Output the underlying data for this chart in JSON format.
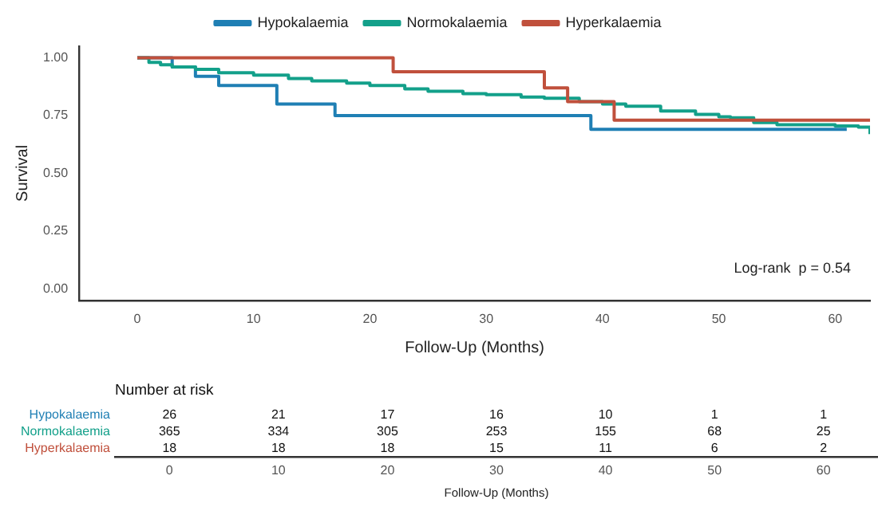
{
  "chart_data": [
    {
      "type": "step",
      "xlabel": "Follow-Up (Months)",
      "ylabel": "Survival",
      "legend": "top",
      "xlim": [
        -5,
        63
      ],
      "xticks": [
        0,
        10,
        20,
        30,
        40,
        50,
        60
      ],
      "ylim": [
        -0.05,
        1.05
      ],
      "yticks": [
        {
          "value": 0,
          "label": "0.00"
        },
        {
          "value": 0.25,
          "label": "0.25"
        },
        {
          "value": 0.5,
          "label": "0.50"
        },
        {
          "value": 0.75,
          "label": "0.75"
        },
        {
          "value": 1,
          "label": "1.00"
        }
      ],
      "annotations": [
        "Log-rank  p = 0.54"
      ],
      "series": [
        {
          "name": "Hypokalaemia",
          "color": "#1f7fb4",
          "x": [
            0,
            3,
            5,
            7,
            12,
            17,
            39,
            61
          ],
          "values": [
            1,
            0.96,
            0.92,
            0.88,
            0.8,
            0.75,
            0.69,
            0.69
          ]
        },
        {
          "name": "Normokalaemia",
          "color": "#13a08a",
          "x": [
            0,
            1,
            2,
            3,
            5,
            7,
            10,
            13,
            15,
            18,
            20,
            23,
            25,
            28,
            30,
            33,
            35,
            38,
            40,
            42,
            45,
            48,
            50,
            51,
            53,
            55,
            60,
            62,
            63
          ],
          "values": [
            1,
            0.98,
            0.97,
            0.96,
            0.95,
            0.935,
            0.925,
            0.91,
            0.9,
            0.89,
            0.88,
            0.865,
            0.855,
            0.845,
            0.84,
            0.83,
            0.825,
            0.81,
            0.8,
            0.79,
            0.77,
            0.755,
            0.745,
            0.74,
            0.72,
            0.71,
            0.705,
            0.7,
            0.67
          ]
        },
        {
          "name": "Hyperkalaemia",
          "color": "#c0503c",
          "x": [
            0,
            22,
            35,
            37,
            41,
            63
          ],
          "values": [
            1,
            0.94,
            0.87,
            0.81,
            0.73,
            0.73
          ]
        }
      ]
    },
    {
      "type": "heatmap",
      "title": "Number at risk",
      "xlabel": "Follow-Up (Months)",
      "data_labels": true,
      "categories": [
        "0",
        "10",
        "20",
        "30",
        "40",
        "50",
        "60"
      ],
      "y_categories": [
        "Hypokalaemia",
        "Normokalaemia",
        "Hyperkalaemia"
      ],
      "cells": [
        [
          26,
          21,
          17,
          16,
          10,
          1,
          1
        ],
        [
          365,
          334,
          305,
          253,
          155,
          68,
          25
        ],
        [
          18,
          18,
          18,
          15,
          11,
          6,
          2
        ]
      ]
    }
  ]
}
